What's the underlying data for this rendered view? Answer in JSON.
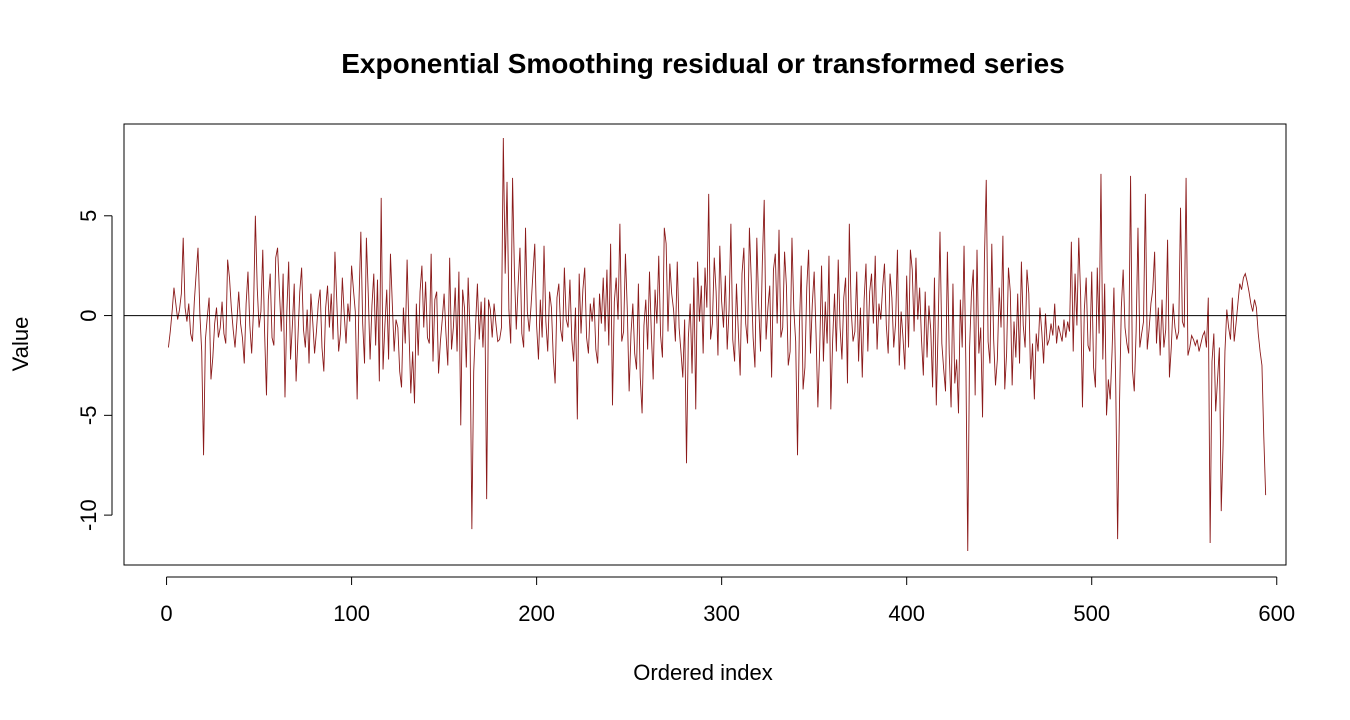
{
  "chart_data": {
    "type": "line",
    "title": "Exponential Smoothing residual or transformed series",
    "xlabel": "Ordered index",
    "ylabel": "Value",
    "xlim": [
      -23,
      605
    ],
    "ylim": [
      -12.5,
      9.6
    ],
    "x_ticks": [
      0,
      100,
      200,
      300,
      400,
      500,
      600
    ],
    "y_ticks": [
      -10,
      -5,
      0,
      5
    ],
    "x_tick_labels": [
      "0",
      "100",
      "200",
      "300",
      "400",
      "500",
      "600"
    ],
    "y_tick_labels": [
      "-10",
      "-5",
      "0",
      "5"
    ],
    "reference_line_y": 0,
    "grid": false,
    "series": [
      {
        "color": "#8B1A1A",
        "x_start": 1,
        "x_step": 1,
        "values": [
          -1.6,
          -0.8,
          0.2,
          1.4,
          0.6,
          -0.2,
          0.3,
          1.1,
          3.9,
          0.4,
          -0.3,
          0.6,
          -0.9,
          -1.3,
          0.7,
          2.1,
          3.4,
          0.1,
          -1.8,
          -7.0,
          -1.2,
          -0.1,
          0.9,
          -3.2,
          -2.1,
          -0.4,
          0.4,
          -1.1,
          -0.6,
          0.7,
          -0.9,
          -1.4,
          2.8,
          1.9,
          0.4,
          -0.7,
          -1.6,
          -0.3,
          1.2,
          -0.4,
          -1.1,
          -2.4,
          0.6,
          2.2,
          -0.5,
          -1.9,
          0.3,
          5.0,
          1.4,
          -0.6,
          0.2,
          3.3,
          -0.9,
          -4.0,
          0.8,
          2.1,
          -1.1,
          -1.5,
          2.9,
          3.4,
          1.2,
          -0.8,
          2.1,
          -4.1,
          0.2,
          2.7,
          -2.2,
          -0.5,
          1.6,
          -3.3,
          -1.1,
          1.2,
          2.4,
          -0.7,
          -1.6,
          0.3,
          -2.4,
          1.1,
          -0.3,
          -1.9,
          -0.8,
          0.6,
          1.3,
          -1.6,
          -2.8,
          0.4,
          1.5,
          -0.6,
          1.1,
          -1.2,
          3.2,
          0.7,
          -1.8,
          -0.9,
          1.9,
          0.1,
          -1.4,
          0.6,
          -0.3,
          2.5,
          1.3,
          0.2,
          -4.2,
          0.7,
          4.2,
          -0.4,
          -2.4,
          3.9,
          1.1,
          -2.2,
          0.5,
          2.1,
          -1.5,
          1.8,
          -3.3,
          5.9,
          -2.7,
          -0.5,
          1.3,
          -2.2,
          3.1,
          0.6,
          -1.8,
          -0.2,
          -0.6,
          -2.8,
          -3.6,
          0.4,
          -1.4,
          2.8,
          -0.7,
          -3.9,
          -1.8,
          -4.4,
          0.6,
          -2.0,
          1.2,
          2.5,
          -0.6,
          1.7,
          -1.1,
          -1.4,
          3.1,
          -2.3,
          0.8,
          1.2,
          -2.9,
          -1.3,
          -0.2,
          1.1,
          -0.9,
          -2.5,
          2.9,
          -1.7,
          -0.6,
          1.4,
          -1.8,
          2.2,
          -5.5,
          1.3,
          0.4,
          -2.6,
          1.9,
          -0.8,
          -10.7,
          -2.8,
          -0.5,
          1.6,
          -1.2,
          0.7,
          -1.6,
          0.9,
          -9.2,
          0.8,
          0.3,
          -1.1,
          0.6,
          -0.4,
          -1.3,
          -1.2,
          -0.6,
          8.9,
          2.1,
          6.7,
          0.3,
          -1.4,
          6.9,
          2.2,
          -0.7,
          1.5,
          3.4,
          -0.9,
          -1.6,
          4.4,
          0.2,
          -0.8,
          0.5,
          2.1,
          3.6,
          -0.5,
          -2.2,
          0.8,
          -1.1,
          3.5,
          -0.3,
          -1.8,
          1.2,
          0.4,
          -2.1,
          -3.4,
          0.9,
          1.6,
          -0.7,
          -1.3,
          2.4,
          -0.2,
          -0.6,
          1.8,
          -1.2,
          -2.3,
          0.4,
          -5.2,
          2.1,
          -0.9,
          1.3,
          2.4,
          -1.1,
          -1.9,
          0.6,
          -0.3,
          0.9,
          -1.7,
          -2.4,
          1.1,
          -0.4,
          1.9,
          -0.8,
          2.3,
          -1.5,
          3.6,
          -4.5,
          0.7,
          1.9,
          -0.2,
          4.6,
          -1.3,
          -0.8,
          3.1,
          0.3,
          -3.8,
          -0.9,
          0.6,
          -1.9,
          -2.7,
          1.6,
          -3.1,
          -4.9,
          -0.5,
          0.8,
          -1.7,
          2.2,
          -0.9,
          -3.2,
          1.3,
          -0.4,
          3.0,
          -1.0,
          -2.1,
          4.4,
          3.6,
          -0.8,
          2.6,
          1.1,
          0.3,
          -1.3,
          2.7,
          -0.6,
          -1.8,
          -3.1,
          -0.2,
          -7.4,
          -1.1,
          0.6,
          -2.9,
          1.9,
          -4.7,
          2.7,
          -0.3,
          1.5,
          -1.9,
          2.4,
          0.4,
          6.1,
          -1.2,
          -0.4,
          2.9,
          1.2,
          -2.0,
          3.5,
          0.7,
          -0.6,
          2.0,
          -1.7,
          0.3,
          4.6,
          -1.2,
          -2.3,
          1.6,
          -0.8,
          -3.0,
          2.1,
          3.4,
          -0.4,
          -1.4,
          4.4,
          1.8,
          -1.1,
          -2.6,
          3.9,
          0.6,
          -1.8,
          2.7,
          5.8,
          -1.2,
          0.4,
          1.5,
          -3.1,
          2.3,
          3.1,
          -0.4,
          4.3,
          -1.1,
          -0.6,
          3.2,
          1.5,
          -2.5,
          -1.8,
          3.9,
          0.3,
          -1.3,
          -7.0,
          -0.6,
          2.5,
          -3.7,
          -2.6,
          1.4,
          3.3,
          -1.9,
          0.6,
          2.2,
          -0.9,
          -4.6,
          -1.6,
          2.5,
          -2.3,
          0.7,
          -1.4,
          3.0,
          -4.7,
          -1.2,
          1.1,
          -1.8,
          2.8,
          -0.6,
          -2.2,
          0.9,
          1.9,
          -3.4,
          4.6,
          0.3,
          -1.3,
          -0.8,
          2.2,
          -2.3,
          0.4,
          -3.1,
          0.8,
          2.6,
          -1.8,
          1.2,
          2.1,
          -0.4,
          3.0,
          -1.7,
          0.6,
          -0.2,
          1.4,
          2.6,
          -0.5,
          -1.9,
          2.1,
          0.9,
          -1.6,
          -0.4,
          3.3,
          -2.5,
          0.2,
          -1.1,
          -2.7,
          2.0,
          -1.6,
          3.3,
          2.3,
          -0.8,
          2.9,
          -0.2,
          1.4,
          -1.2,
          -3.0,
          1.2,
          -2.1,
          0.5,
          -0.7,
          -3.6,
          1.9,
          -4.5,
          -0.6,
          4.2,
          -1.4,
          -2.7,
          -3.8,
          3.2,
          -1.9,
          -4.6,
          1.6,
          -3.4,
          -2.2,
          -4.9,
          0.8,
          -1.6,
          3.5,
          -2.5,
          -11.8,
          -1.6,
          1.1,
          2.3,
          -4.0,
          3.3,
          -1.9,
          -0.6,
          -5.1,
          2.8,
          6.8,
          -1.3,
          -2.4,
          3.6,
          -1.2,
          -3.5,
          -2.2,
          1.4,
          -0.6,
          4.0,
          -3.7,
          -1.9,
          2.4,
          1.2,
          -3.5,
          -0.3,
          -2.1,
          1.1,
          -2.4,
          2.7,
          -0.5,
          -1.6,
          2.3,
          1.1,
          -3.2,
          -1.4,
          -4.2,
          -0.9,
          -1.8,
          0.4,
          -0.8,
          -2.4,
          0.1,
          -1.5,
          -1.2,
          -0.4,
          -1.0,
          0.6,
          -1.4,
          -0.5,
          -0.9,
          -1.3,
          -0.2,
          -1.1,
          -0.3,
          -0.8,
          3.7,
          -1.8,
          2.1,
          -0.5,
          3.9,
          1.0,
          -4.6,
          0.3,
          1.9,
          -1.5,
          -1.8,
          2.2,
          -2.6,
          -3.6,
          2.4,
          -0.9,
          7.1,
          -2.2,
          1.6,
          -5.0,
          -3.2,
          -4.2,
          -1.8,
          1.4,
          -3.6,
          -11.2,
          -4.5,
          0.4,
          2.3,
          -0.6,
          -1.4,
          -1.9,
          7.0,
          -2.7,
          -3.8,
          -0.8,
          4.4,
          -1.6,
          -0.9,
          -0.3,
          6.1,
          -1.7,
          -0.7,
          0.6,
          1.3,
          3.2,
          -1.4,
          0.4,
          -2.0,
          0.8,
          -1.6,
          -0.7,
          3.8,
          -3.1,
          -1.6,
          0.6,
          -0.6,
          -1.2,
          -0.8,
          5.4,
          -0.3,
          -0.6,
          6.9,
          -2.0,
          -1.6,
          -1.0,
          -1.2,
          -1.5,
          -1.2,
          -1.8,
          -1.4,
          -1.0,
          -0.8,
          -1.6,
          0.9,
          -11.4,
          -2.3,
          -0.9,
          -4.8,
          -3.2,
          -1.6,
          -9.8,
          -6.5,
          -1.8,
          0.3,
          -0.6,
          -1.2,
          0.9,
          -1.3,
          -0.4,
          0.6,
          1.6,
          1.3,
          1.9,
          2.1,
          1.7,
          1.2,
          0.6,
          0.2,
          0.8,
          0.4,
          -0.9,
          -1.8,
          -2.5,
          -6.1,
          -9.0
        ]
      }
    ]
  }
}
